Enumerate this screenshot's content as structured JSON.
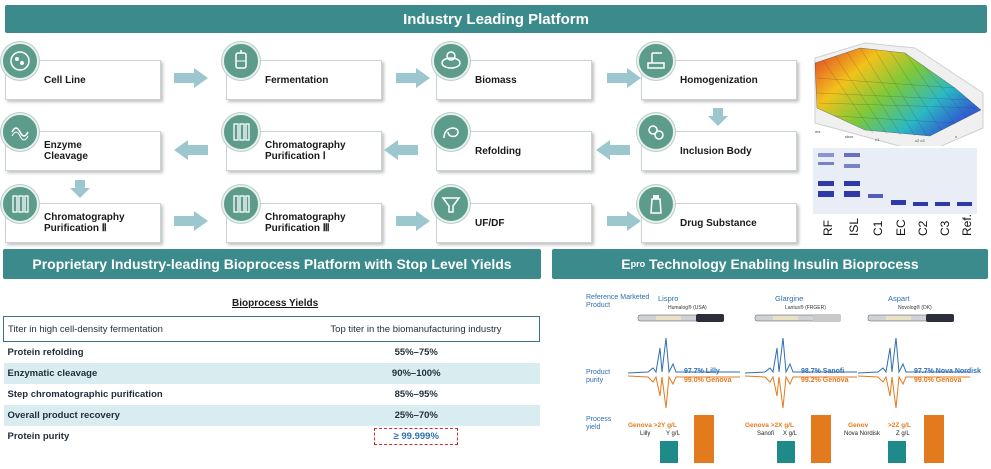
{
  "banners": {
    "top": "Industry Leading Platform",
    "left": "Proprietary Industry-leading Bioprocess Platform with Stop Level Yields",
    "right_prefix": "E",
    "right_sup": "pro",
    "right_rest": " Technology Enabling Insulin Bioprocess"
  },
  "steps": [
    {
      "label": "Cell Line",
      "icon": "cell-line-icon"
    },
    {
      "label": "Fermentation",
      "icon": "fermenter-icon"
    },
    {
      "label": "Biomass",
      "icon": "biomass-icon"
    },
    {
      "label": "Homogenization",
      "icon": "homogenizer-icon"
    },
    {
      "label": "Enzyme\nCleavage",
      "icon": "enzyme-icon"
    },
    {
      "label": "Chromatography\nPurification Ⅰ",
      "icon": "chromatography-icon"
    },
    {
      "label": "Refolding",
      "icon": "refolding-icon"
    },
    {
      "label": "Inclusion Body",
      "icon": "inclusion-body-icon"
    },
    {
      "label": "Chromatography\nPurification Ⅱ",
      "icon": "chromatography-icon"
    },
    {
      "label": "Chromatography\nPurification Ⅲ",
      "icon": "chromatography-icon"
    },
    {
      "label": "UF/DF",
      "icon": "ufdf-icon"
    },
    {
      "label": "Drug Substance",
      "icon": "drug-substance-icon"
    }
  ],
  "gel": {
    "lanes": [
      "RF",
      "ISL",
      "C1",
      "EC",
      "C2",
      "C3",
      "Ref."
    ]
  },
  "yields": {
    "title": "Bioprocess Yields",
    "header": [
      "Titer in high cell-density fermentation",
      "Top titer in the biomanufacturing industry"
    ],
    "rows": [
      {
        "label": "Protein refolding",
        "value": "55%–75%"
      },
      {
        "label": "Enzymatic cleavage",
        "value": "90%–100%"
      },
      {
        "label": "Step chromatographic purification",
        "value": "85%–95%"
      },
      {
        "label": "Overall product recovery",
        "value": "25%–70%"
      },
      {
        "label": "Protein purity",
        "value": "≥ 99.999%"
      }
    ]
  },
  "insulin": {
    "row_labels": {
      "reference": "Reference Marketed\nProduct",
      "purity": "Product\npurity",
      "yield": "Process\nyield"
    },
    "products": [
      {
        "name": "Lispro",
        "brand": "Humalog® (USA)",
        "ref_purity": "97.7% Lilly",
        "genova_purity": "99.0% Genova",
        "yield_text": "Genova >2Y g/L",
        "ref_company": "Lilly",
        "ref_yield": "Y g/L"
      },
      {
        "name": "Glargine",
        "brand": "Lantus® (FRGER)",
        "ref_purity": "98.7% Sanofi",
        "genova_purity": "99.2% Genova",
        "yield_text": "Genova >2X g/L",
        "ref_company": "Sanofi",
        "ref_yield": "X g/L"
      },
      {
        "name": "Aspart",
        "brand": "Novolog® (DK)",
        "ref_purity": "97.7% Nova Nordisk",
        "genova_purity": "99.0% Genova",
        "yield_text_a": "Genov",
        "yield_text_b": ">2Z g/L",
        "ref_company": "Nova Nordisk",
        "ref_yield": "Z g/L"
      }
    ]
  },
  "colors": {
    "teal": "#3b8a8c",
    "arrow": "#9cc7cf",
    "blue_trace": "#2e6fb0",
    "orange": "#e47a1e",
    "bar_teal": "#1f8a8a"
  }
}
